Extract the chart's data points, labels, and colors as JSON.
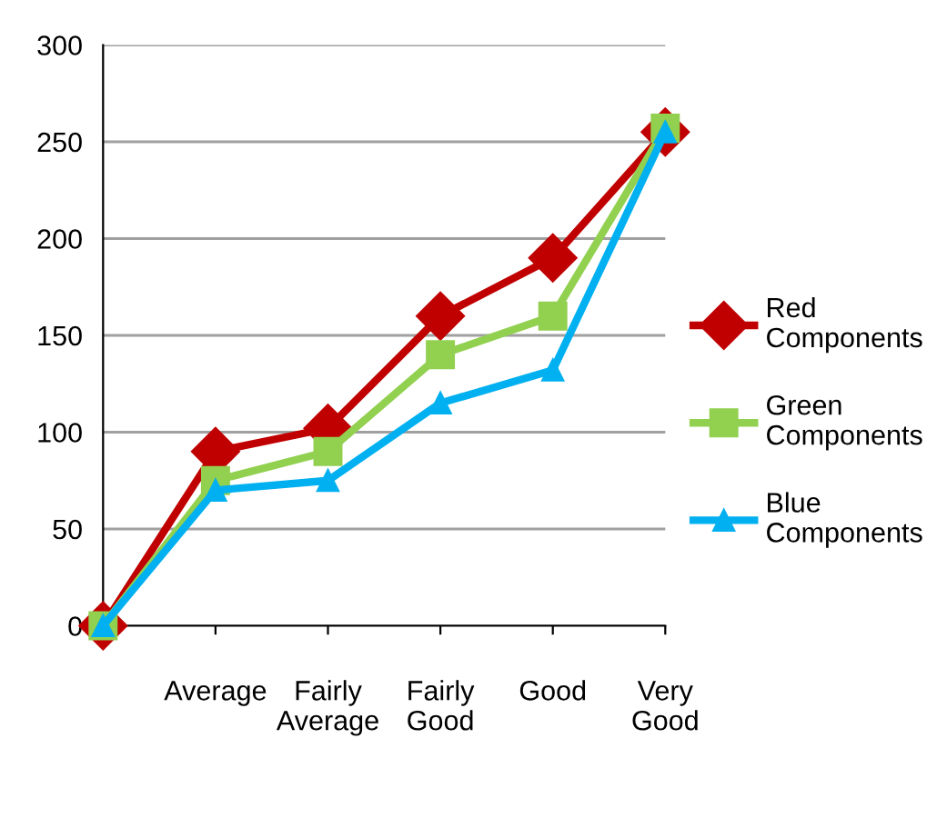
{
  "chart_data": {
    "type": "line",
    "categories": [
      null,
      "Average",
      "Fairly Average",
      "Fairly Good",
      "Good",
      "Very Good"
    ],
    "series": [
      {
        "name": "Red Components",
        "color": "#c00000",
        "marker": "diamond",
        "values": [
          0,
          90,
          102,
          160,
          190,
          255
        ]
      },
      {
        "name": "Green Components",
        "color": "#92d050",
        "marker": "square",
        "values": [
          0,
          75,
          90,
          140,
          160,
          257
        ]
      },
      {
        "name": "Blue Components",
        "color": "#00b0f0",
        "marker": "triangle",
        "values": [
          0,
          70,
          75,
          115,
          132,
          255
        ]
      }
    ],
    "ylim": [
      0,
      300
    ],
    "yticks": [
      0,
      50,
      100,
      150,
      200,
      250,
      300
    ],
    "grid": "y",
    "legend": "right",
    "line_style": "solid"
  }
}
